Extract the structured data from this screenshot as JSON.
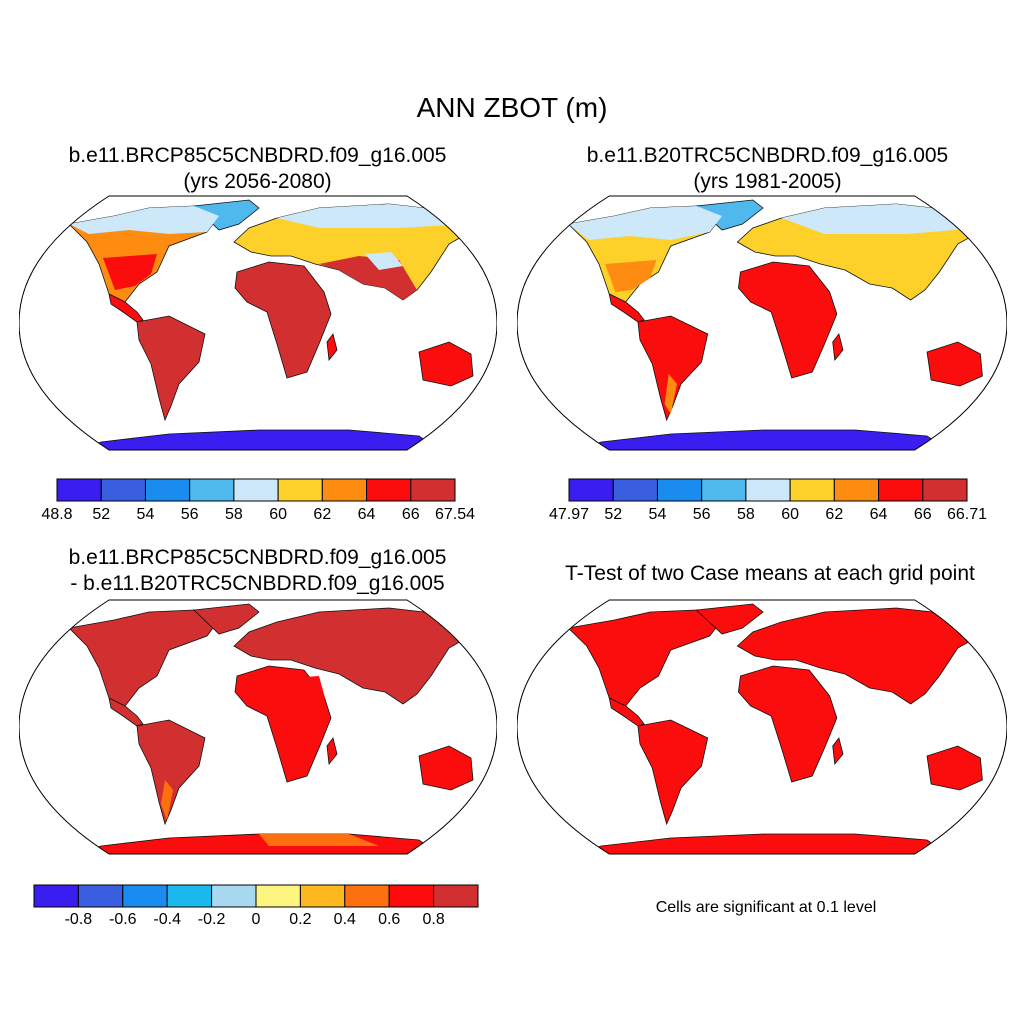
{
  "title": "ANN ZBOT (m)",
  "panels": [
    {
      "title_line1": "b.e11.BRCP85C5CNBDRD.f09_g16.005",
      "title_line2": "(yrs 2056-2080)",
      "colorbar": {
        "labels": [
          "48.8",
          "52",
          "54",
          "56",
          "58",
          "60",
          "62",
          "64",
          "66",
          "67.54"
        ],
        "colors": [
          "#3a1ef0",
          "#3a5ee0",
          "#1a8cf0",
          "#4fb8ec",
          "#cde8f8",
          "#fdd02a",
          "#fd8c10",
          "#fb0d0d",
          "#d23030"
        ]
      }
    },
    {
      "title_line1": "b.e11.B20TRC5CNBDRD.f09_g16.005",
      "title_line2": "(yrs 1981-2005)",
      "colorbar": {
        "labels": [
          "47.97",
          "52",
          "54",
          "56",
          "58",
          "60",
          "62",
          "64",
          "66",
          "66.71"
        ],
        "colors": [
          "#3a1ef0",
          "#3a5ee0",
          "#1a8cf0",
          "#4fb8ec",
          "#cde8f8",
          "#fdd02a",
          "#fd8c10",
          "#fb0d0d",
          "#d23030"
        ]
      }
    },
    {
      "title_line1": "b.e11.BRCP85C5CNBDRD.f09_g16.005",
      "title_line2": "- b.e11.B20TRC5CNBDRD.f09_g16.005",
      "colorbar": {
        "labels": [
          "-0.8",
          "-0.6",
          "-0.4",
          "-0.2",
          "0",
          "0.2",
          "0.4",
          "0.6",
          "0.8"
        ],
        "colors": [
          "#3a1ef0",
          "#3a5ee0",
          "#1a8cf0",
          "#1ab8ec",
          "#a8d8f0",
          "#fdf580",
          "#fdb820",
          "#fd7010",
          "#fb0d0d",
          "#d23030"
        ]
      }
    },
    {
      "title_line1": "T-Test of two Case means at each grid point",
      "note": "Cells are significant at 0.1 level"
    }
  ]
}
